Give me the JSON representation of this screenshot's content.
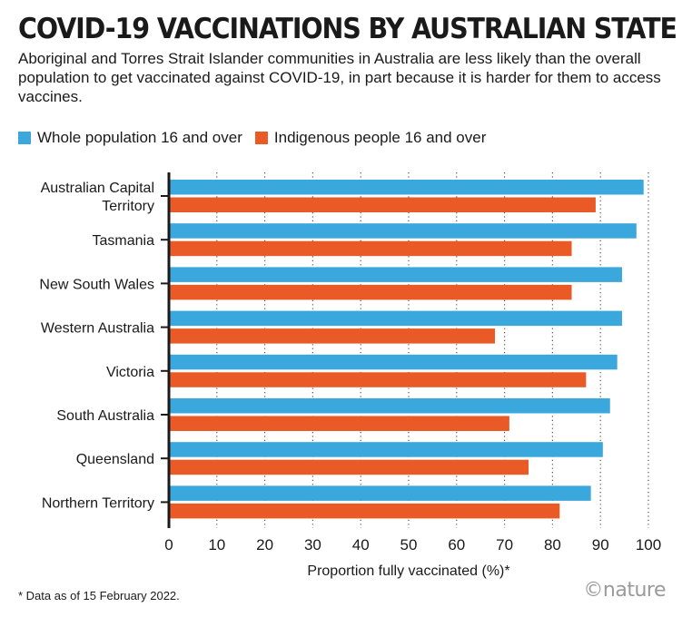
{
  "chart_data": {
    "type": "bar",
    "orientation": "horizontal",
    "title": "COVID-19 VACCINATIONS BY AUSTRALIAN STATE",
    "subtitle": "Aboriginal and Torres Strait Islander communities in Australia are less likely than the overall population to get vaccinated against COVID-19, in part because it is harder for them to access vaccines.",
    "categories": [
      [
        "Australian Capital",
        "Territory"
      ],
      [
        "Tasmania"
      ],
      [
        "New South Wales"
      ],
      [
        "Western Australia"
      ],
      [
        "Victoria"
      ],
      [
        "South Australia"
      ],
      [
        "Queensland"
      ],
      [
        "Northern Territory"
      ]
    ],
    "series": [
      {
        "name": "Whole population 16 and over",
        "color": "#3aa7dd",
        "values": [
          99,
          97.5,
          94.5,
          94.5,
          93.5,
          92,
          90.5,
          88
        ]
      },
      {
        "name": "Indigenous people 16 and over",
        "color": "#ea5a27",
        "values": [
          89,
          84,
          84,
          68,
          87,
          71,
          75,
          81.5
        ]
      }
    ],
    "xlabel": "Proportion fully vaccinated (%)*",
    "xlim": [
      0,
      100
    ],
    "xticks": [
      0,
      10,
      20,
      30,
      40,
      50,
      60,
      70,
      80,
      90,
      100
    ],
    "grid": "vertical-dotted",
    "legend": "top-left"
  },
  "footnote": "* Data as of 15 February 2022.",
  "brand": "©nature"
}
